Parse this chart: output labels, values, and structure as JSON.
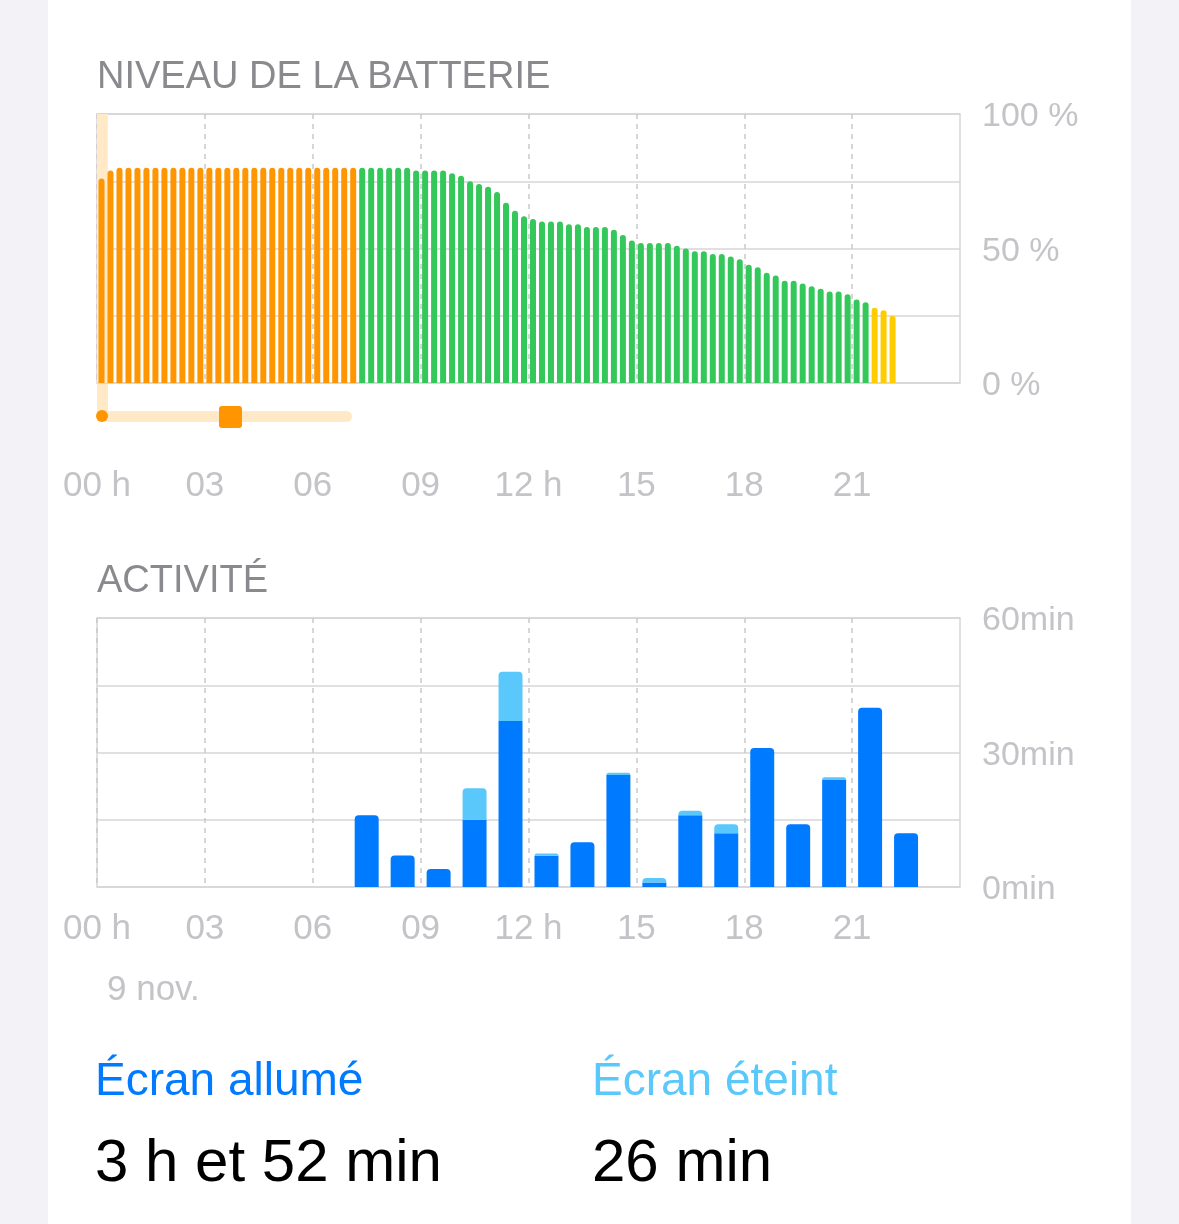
{
  "chart_data": [
    {
      "type": "bar",
      "title": "NIVEAU DE LA BATTERIE",
      "series": [
        {
          "color": "#ff9500",
          "x": [
            0.125,
            0.375,
            0.625,
            0.875,
            1.125,
            1.375,
            1.625,
            1.875,
            2.125,
            2.375,
            2.625,
            2.875,
            3.125,
            3.375,
            3.625,
            3.875,
            4.125,
            4.375,
            4.625,
            4.875,
            5.125,
            5.375,
            5.625,
            5.875,
            6.125,
            6.375,
            6.625,
            6.875,
            7.125
          ],
          "values": [
            76,
            79,
            80,
            80,
            80,
            80,
            80,
            80,
            80,
            80,
            80,
            80,
            80,
            80,
            80,
            80,
            80,
            80,
            80,
            80,
            80,
            80,
            80,
            80,
            80,
            80,
            80,
            80,
            80
          ]
        },
        {
          "color": "#34c759",
          "x": [
            7.375,
            7.625,
            7.875,
            8.125,
            8.375,
            8.625,
            8.875,
            9.125,
            9.375,
            9.625,
            9.875,
            10.125,
            10.375,
            10.625,
            10.875,
            11.125,
            11.375,
            11.625,
            11.875,
            12.125,
            12.375,
            12.625,
            12.875,
            13.125,
            13.375,
            13.625,
            13.875,
            14.125,
            14.375,
            14.625,
            14.875,
            15.125,
            15.375,
            15.625,
            15.875,
            16.125,
            16.375,
            16.625,
            16.875,
            17.125,
            17.375,
            17.625,
            17.875,
            18.125,
            18.375,
            18.625,
            18.875,
            19.125,
            19.375,
            19.625,
            19.875,
            20.125,
            20.375,
            20.625,
            20.875,
            21.125,
            21.375
          ],
          "values": [
            80,
            80,
            80,
            80,
            80,
            80,
            79,
            79,
            79,
            79,
            78,
            77,
            75,
            74,
            73,
            71,
            67,
            64,
            62,
            61,
            60,
            60,
            60,
            59,
            59,
            58,
            58,
            58,
            57,
            55,
            53,
            52,
            52,
            52,
            52,
            51,
            50,
            49,
            49,
            48,
            48,
            47,
            46,
            44,
            43,
            41,
            40,
            38,
            38,
            37,
            36,
            35,
            34,
            34,
            33,
            31,
            30
          ]
        },
        {
          "color": "#ffcc00",
          "x": [
            21.625,
            21.875,
            22.125
          ],
          "values": [
            28,
            27,
            25
          ]
        }
      ],
      "xlim": [
        0,
        24
      ],
      "xticks": [
        {
          "value": 0,
          "label": "00 h"
        },
        {
          "value": 3,
          "label": "03"
        },
        {
          "value": 6,
          "label": "06"
        },
        {
          "value": 9,
          "label": "09"
        },
        {
          "value": 12,
          "label": "12 h"
        },
        15,
        18,
        21
      ],
      "ylim": [
        0,
        100
      ],
      "yticks": [
        {
          "value": 0,
          "label": "0 %"
        },
        {
          "value": 25,
          "label": null
        },
        {
          "value": 50,
          "label": "50 %"
        },
        {
          "value": 75,
          "label": null
        },
        {
          "value": 100,
          "label": "100 %"
        }
      ],
      "grid": true,
      "bands": [
        {
          "axis": "x",
          "from": 0,
          "to": 0.3,
          "color": "#ffe9c7"
        }
      ]
    },
    {
      "type": "bar",
      "title": "ACTIVITÉ",
      "xlabel": "9 nov.",
      "stacked": true,
      "x": [
        7.5,
        8.5,
        9.5,
        10.5,
        11.5,
        12.5,
        13.5,
        14.5,
        15.5,
        16.5,
        17.5,
        18.5,
        19.5,
        20.5,
        21.5,
        22.5
      ],
      "series": [
        {
          "name": "Écran allumé",
          "color": "#007aff",
          "values": [
            16,
            7,
            4,
            15,
            37,
            7,
            10,
            25,
            1,
            16,
            12,
            31,
            14,
            24,
            40,
            12
          ]
        },
        {
          "name": "Écran éteint",
          "color": "#5ac8fa",
          "values": [
            null,
            null,
            null,
            7,
            11,
            0.5,
            null,
            0.5,
            1,
            1,
            2,
            null,
            null,
            0.5,
            null,
            null
          ]
        }
      ],
      "xlim": [
        0,
        24
      ],
      "xticks": [
        {
          "value": 0,
          "label": "00 h"
        },
        {
          "value": 3,
          "label": "03"
        },
        {
          "value": 6,
          "label": "06"
        },
        {
          "value": 9,
          "label": "09"
        },
        {
          "value": 12,
          "label": "12 h"
        },
        15,
        18,
        21
      ],
      "ylim": [
        0,
        60
      ],
      "yticks": [
        {
          "value": 0,
          "label": "0min"
        },
        {
          "value": 15,
          "label": null
        },
        {
          "value": 30,
          "label": "30min"
        },
        {
          "value": 45,
          "label": null
        },
        {
          "value": 60,
          "label": "60min"
        }
      ],
      "grid": true,
      "legend": "bottom",
      "annotations": [
        "3 h et 52 min",
        "26 min"
      ]
    }
  ]
}
